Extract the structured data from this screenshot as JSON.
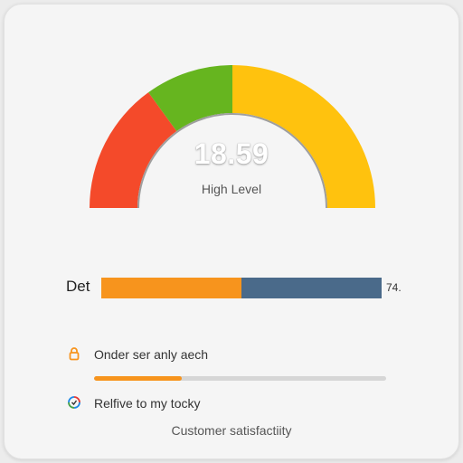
{
  "gauge": {
    "value": "18.59",
    "label": "High Level",
    "segments": [
      {
        "name": "red",
        "color": "#f44a2a",
        "from": 0.0,
        "to": 0.3
      },
      {
        "name": "green",
        "color": "#66b51f",
        "from": 0.3,
        "to": 0.5
      },
      {
        "name": "yellow",
        "color": "#ffc20e",
        "from": 0.5,
        "to": 1.0
      }
    ]
  },
  "comparison_bar": {
    "label": "Det",
    "value_text": "74.",
    "segments": [
      {
        "name": "orange",
        "color": "#f7941d",
        "fraction": 0.5
      },
      {
        "name": "blue",
        "color": "#4a6a8a",
        "fraction": 0.5
      }
    ]
  },
  "rows": [
    {
      "text": "Onder ser anly aech",
      "icon": "lock-icon",
      "progress": 0.3
    },
    {
      "text": "Relfive to my tocky",
      "icon": "refresh-icon"
    }
  ],
  "footer": {
    "caption": "Customer satisfactiity"
  },
  "colors": {
    "accent_orange": "#f7941d",
    "track": "#d6d6d6",
    "card": "#f5f5f5"
  }
}
